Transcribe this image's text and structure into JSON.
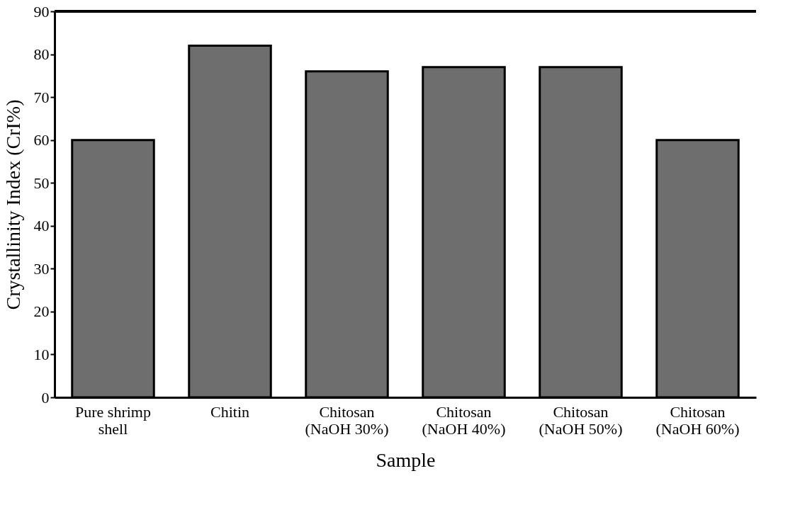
{
  "chart_data": {
    "type": "bar",
    "xlabel": "Sample",
    "ylabel": "Crystallinity Index (CrI%)",
    "categories": [
      "Pure shrimp\nshell",
      "Chitin",
      "Chitosan\n(NaOH 30%)",
      "Chitosan\n(NaOH 40%)",
      "Chitosan\n(NaOH 50%)",
      "Chitosan\n(NaOH 60%)"
    ],
    "values": [
      60,
      82,
      76,
      77,
      77,
      60
    ],
    "color": "#6e6e6e",
    "ylim": [
      0,
      90
    ],
    "yticks": [
      0,
      10,
      20,
      30,
      40,
      50,
      60,
      70,
      80,
      90
    ],
    "grid": false
  }
}
